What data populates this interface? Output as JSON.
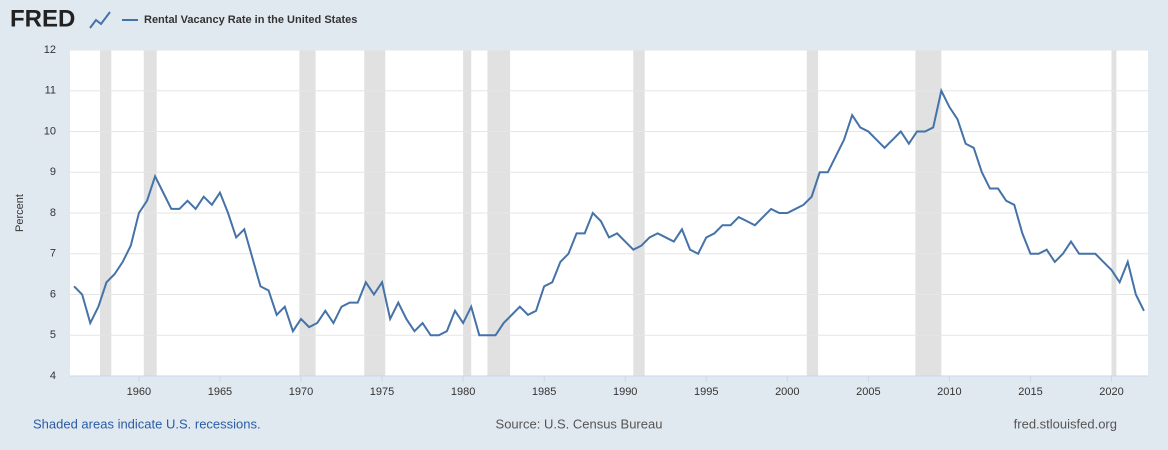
{
  "logo": "FRED",
  "footer": {
    "note": "Shaded areas indicate U.S. recessions.",
    "source": "Source: U.S. Census Bureau",
    "site": "fred.stlouisfed.org"
  },
  "chart_data": {
    "type": "line",
    "y_label": "Percent",
    "x": [
      1956,
      1956.5,
      1957,
      1957.5,
      1958,
      1958.5,
      1959,
      1959.5,
      1960,
      1960.5,
      1961,
      1961.5,
      1962,
      1962.5,
      1963,
      1963.5,
      1964,
      1964.5,
      1965,
      1965.5,
      1966,
      1966.5,
      1967,
      1967.5,
      1968,
      1968.5,
      1969,
      1969.5,
      1970,
      1970.5,
      1971,
      1971.5,
      1972,
      1972.5,
      1973,
      1973.5,
      1974,
      1974.5,
      1975,
      1975.5,
      1976,
      1976.5,
      1977,
      1977.5,
      1978,
      1978.5,
      1979,
      1979.5,
      1980,
      1980.5,
      1981,
      1981.5,
      1982,
      1982.5,
      1983,
      1983.5,
      1984,
      1984.5,
      1985,
      1985.5,
      1986,
      1986.5,
      1987,
      1987.5,
      1988,
      1988.5,
      1989,
      1989.5,
      1990,
      1990.5,
      1991,
      1991.5,
      1992,
      1992.5,
      1993,
      1993.5,
      1994,
      1994.5,
      1995,
      1995.5,
      1996,
      1996.5,
      1997,
      1997.5,
      1998,
      1998.5,
      1999,
      1999.5,
      2000,
      2000.5,
      2001,
      2001.5,
      2002,
      2002.5,
      2003,
      2003.5,
      2004,
      2004.5,
      2005,
      2005.5,
      2006,
      2006.5,
      2007,
      2007.5,
      2008,
      2008.5,
      2009,
      2009.5,
      2010,
      2010.5,
      2011,
      2011.5,
      2012,
      2012.5,
      2013,
      2013.5,
      2014,
      2014.5,
      2015,
      2015.5,
      2016,
      2016.5,
      2017,
      2017.5,
      2018,
      2018.5,
      2019,
      2019.5,
      2020,
      2020.5,
      2021,
      2021.5,
      2022
    ],
    "series": [
      {
        "name": "Rental Vacancy Rate in the United States",
        "color": "#4572a7",
        "values": [
          6.2,
          6.0,
          5.3,
          5.7,
          6.3,
          6.5,
          6.8,
          7.2,
          8.0,
          8.3,
          8.9,
          8.5,
          8.1,
          8.1,
          8.3,
          8.1,
          8.4,
          8.2,
          8.5,
          8.0,
          7.4,
          7.6,
          6.9,
          6.2,
          6.1,
          5.5,
          5.7,
          5.1,
          5.4,
          5.2,
          5.3,
          5.6,
          5.3,
          5.7,
          5.8,
          5.8,
          6.3,
          6.0,
          6.3,
          5.4,
          5.8,
          5.4,
          5.1,
          5.3,
          5.0,
          5.0,
          5.1,
          5.6,
          5.3,
          5.7,
          5.0,
          5.0,
          5.0,
          5.3,
          5.5,
          5.7,
          5.5,
          5.6,
          6.2,
          6.3,
          6.8,
          7.0,
          7.5,
          7.5,
          8.0,
          7.8,
          7.4,
          7.5,
          7.3,
          7.1,
          7.2,
          7.4,
          7.5,
          7.4,
          7.3,
          7.6,
          7.1,
          7.0,
          7.4,
          7.5,
          7.7,
          7.7,
          7.9,
          7.8,
          7.7,
          7.9,
          8.1,
          8.0,
          8.0,
          8.1,
          8.2,
          8.4,
          9.0,
          9.0,
          9.4,
          9.8,
          10.4,
          10.1,
          10.0,
          9.8,
          9.6,
          9.8,
          10.0,
          9.7,
          10.0,
          10.0,
          10.1,
          11.0,
          10.6,
          10.3,
          9.7,
          9.6,
          9.0,
          8.6,
          8.6,
          8.3,
          8.2,
          7.5,
          7.0,
          7.0,
          7.1,
          6.8,
          7.0,
          7.3,
          7.0,
          7.0,
          7.0,
          6.8,
          6.6,
          6.3,
          6.8,
          6.0,
          5.6
        ]
      }
    ],
    "recessions": [
      [
        1957.6,
        1958.3
      ],
      [
        1960.3,
        1961.1
      ],
      [
        1969.9,
        1970.9
      ],
      [
        1973.9,
        1975.2
      ],
      [
        1980.0,
        1980.5
      ],
      [
        1981.5,
        1982.9
      ],
      [
        1990.5,
        1991.2
      ],
      [
        2001.2,
        2001.9
      ],
      [
        2007.9,
        2009.5
      ],
      [
        2020.0,
        2020.3
      ]
    ],
    "recession_color": "#e1e1e1",
    "xlim": [
      1955.75,
      2022.25
    ],
    "xticks": [
      1960,
      1965,
      1970,
      1975,
      1980,
      1985,
      1990,
      1995,
      2000,
      2005,
      2010,
      2015,
      2020
    ],
    "ylim": [
      4,
      12
    ],
    "yticks": [
      4,
      5,
      6,
      7,
      8,
      9,
      10,
      11,
      12
    ],
    "grid": true
  }
}
